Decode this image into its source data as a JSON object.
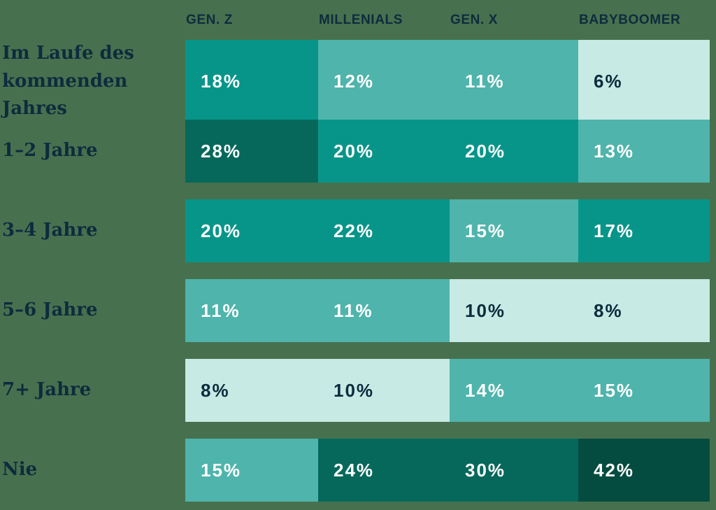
{
  "background_color": "#47714E",
  "label_color": "#0D2C3E",
  "chart_data": {
    "type": "heatmap",
    "title": "",
    "columns": [
      "GEN. Z",
      "MILLENIALS",
      "GEN. X",
      "BABYBOOMER"
    ],
    "rows": [
      "Im Laufe des kommenden Jahres",
      "1–2 Jahre",
      "3–4 Jahre",
      "5–6 Jahre",
      "7+ Jahre",
      "Nie"
    ],
    "values": [
      [
        18,
        12,
        11,
        6
      ],
      [
        28,
        20,
        20,
        13
      ],
      [
        20,
        22,
        15,
        17
      ],
      [
        11,
        11,
        10,
        8
      ],
      [
        8,
        10,
        14,
        15
      ],
      [
        15,
        24,
        30,
        42
      ]
    ],
    "unit": "%",
    "legend_position": "none",
    "grid": false,
    "palette": [
      {
        "max": 10,
        "bg": "#C7EAE4",
        "text": "#0E2A3C"
      },
      {
        "max": 15,
        "bg": "#4FB4AC",
        "text": "#FFFFFF"
      },
      {
        "max": 22,
        "bg": "#089589",
        "text": "#FFFFFF"
      },
      {
        "max": 31,
        "bg": "#06685B",
        "text": "#FFFFFF"
      },
      {
        "max": 100,
        "bg": "#054C40",
        "text": "#FFFFFF"
      }
    ]
  }
}
